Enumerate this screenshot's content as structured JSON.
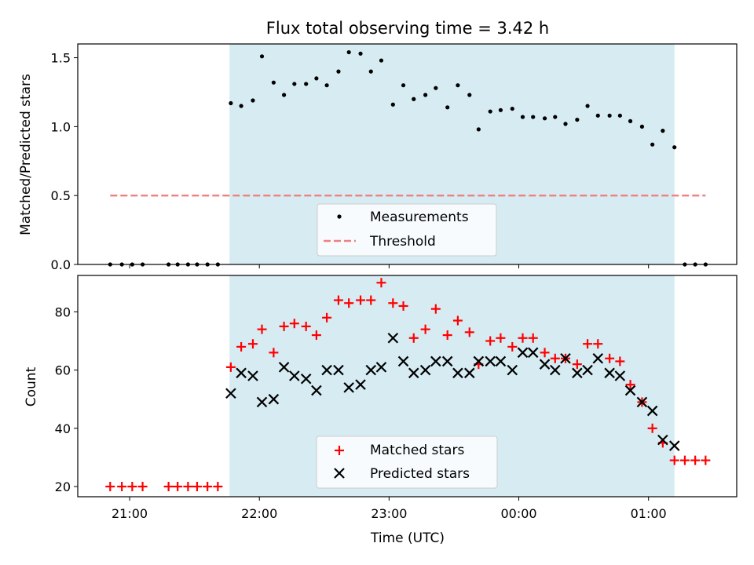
{
  "chart_data": {
    "type": "scatter",
    "title": "Flux total observing time = 3.42 h",
    "xlabel": "Time (UTC)",
    "x_tick_labels": [
      "21:00",
      "22:00",
      "23:00",
      "00:00",
      "01:00"
    ],
    "x_tick_values": [
      21.0,
      22.0,
      23.0,
      24.0,
      25.0
    ],
    "xlim": [
      20.6,
      25.68
    ],
    "observing_window": [
      21.77,
      25.2
    ],
    "colors": {
      "observing_window": "#add8e6",
      "measurements": "#000000",
      "threshold": "#f08080",
      "matched": "#ff0000",
      "predicted": "#000000"
    },
    "panels": [
      {
        "ylabel": "Matched/Predicted stars",
        "ylim": [
          0.0,
          1.6
        ],
        "y_tick_values": [
          0.0,
          0.5,
          1.0,
          1.5
        ],
        "y_tick_labels": [
          "0.0",
          "0.5",
          "1.0",
          "1.5"
        ],
        "legend": {
          "position": "lower center",
          "entries": [
            "Measurements",
            "Threshold"
          ]
        },
        "series": [
          {
            "name": "Measurements",
            "marker": "dot",
            "x": [
              20.85,
              20.94,
              21.02,
              21.1,
              21.3,
              21.37,
              21.45,
              21.52,
              21.6,
              21.68,
              21.78,
              21.86,
              21.95,
              22.02,
              22.11,
              22.19,
              22.27,
              22.36,
              22.44,
              22.52,
              22.61,
              22.69,
              22.78,
              22.86,
              22.94,
              23.03,
              23.11,
              23.19,
              23.28,
              23.36,
              23.45,
              23.53,
              23.62,
              23.69,
              23.78,
              23.86,
              23.95,
              24.03,
              24.11,
              24.2,
              24.28,
              24.36,
              24.45,
              24.53,
              24.61,
              24.7,
              24.78,
              24.86,
              24.95,
              25.03,
              25.11,
              25.2,
              25.28,
              25.36,
              25.44
            ],
            "y": [
              0.0,
              0.0,
              0.0,
              0.0,
              0.0,
              0.0,
              0.0,
              0.0,
              0.0,
              0.0,
              1.17,
              1.15,
              1.19,
              1.51,
              1.32,
              1.23,
              1.31,
              1.31,
              1.35,
              1.3,
              1.4,
              1.54,
              1.53,
              1.4,
              1.48,
              1.16,
              1.3,
              1.2,
              1.23,
              1.28,
              1.14,
              1.3,
              1.23,
              0.98,
              1.11,
              1.12,
              1.13,
              1.07,
              1.07,
              1.06,
              1.07,
              1.02,
              1.05,
              1.15,
              1.08,
              1.08,
              1.08,
              1.04,
              1.0,
              0.87,
              0.97,
              0.85,
              0.0,
              0.0,
              0.0
            ]
          },
          {
            "name": "Threshold",
            "marker": "dashed-line",
            "x": [
              20.85,
              25.44
            ],
            "y": [
              0.5,
              0.5
            ]
          }
        ]
      },
      {
        "ylabel": "Count",
        "ylim": [
          16.5,
          92.5
        ],
        "y_tick_values": [
          20,
          40,
          60,
          80
        ],
        "y_tick_labels": [
          "20",
          "40",
          "60",
          "80"
        ],
        "legend": {
          "position": "lower center",
          "entries": [
            "Matched stars",
            "Predicted stars"
          ]
        },
        "series": [
          {
            "name": "Matched stars",
            "marker": "plus",
            "x": [
              20.85,
              20.94,
              21.02,
              21.1,
              21.3,
              21.37,
              21.45,
              21.52,
              21.6,
              21.68,
              21.78,
              21.86,
              21.95,
              22.02,
              22.11,
              22.19,
              22.27,
              22.36,
              22.44,
              22.52,
              22.61,
              22.69,
              22.78,
              22.86,
              22.94,
              23.03,
              23.11,
              23.19,
              23.28,
              23.36,
              23.45,
              23.53,
              23.62,
              23.69,
              23.78,
              23.86,
              23.95,
              24.03,
              24.11,
              24.2,
              24.28,
              24.36,
              24.45,
              24.53,
              24.61,
              24.7,
              24.78,
              24.86,
              24.95,
              25.03,
              25.11,
              25.2,
              25.28,
              25.36,
              25.44
            ],
            "y": [
              20,
              20,
              20,
              20,
              20,
              20,
              20,
              20,
              20,
              20,
              61,
              68,
              69,
              74,
              66,
              75,
              76,
              75,
              72,
              78,
              84,
              83,
              84,
              84,
              90,
              83,
              82,
              71,
              74,
              81,
              72,
              77,
              73,
              62,
              70,
              71,
              68,
              71,
              71,
              66,
              64,
              64,
              62,
              69,
              69,
              64,
              63,
              55,
              49,
              40,
              35,
              29,
              29,
              29,
              29
            ]
          },
          {
            "name": "Predicted stars",
            "marker": "x",
            "x": [
              21.78,
              21.86,
              21.95,
              22.02,
              22.11,
              22.19,
              22.27,
              22.36,
              22.44,
              22.52,
              22.61,
              22.69,
              22.78,
              22.86,
              22.94,
              23.03,
              23.11,
              23.19,
              23.28,
              23.36,
              23.45,
              23.53,
              23.62,
              23.69,
              23.78,
              23.86,
              23.95,
              24.03,
              24.11,
              24.2,
              24.28,
              24.36,
              24.45,
              24.53,
              24.61,
              24.7,
              24.78,
              24.86,
              24.95,
              25.03,
              25.11,
              25.2
            ],
            "y": [
              52,
              59,
              58,
              49,
              50,
              61,
              58,
              57,
              53,
              60,
              60,
              54,
              55,
              60,
              61,
              71,
              63,
              59,
              60,
              63,
              63,
              59,
              59,
              63,
              63,
              63,
              60,
              66,
              66,
              62,
              60,
              64,
              59,
              60,
              64,
              59,
              58,
              53,
              49,
              46,
              36,
              34
            ]
          }
        ]
      }
    ]
  }
}
